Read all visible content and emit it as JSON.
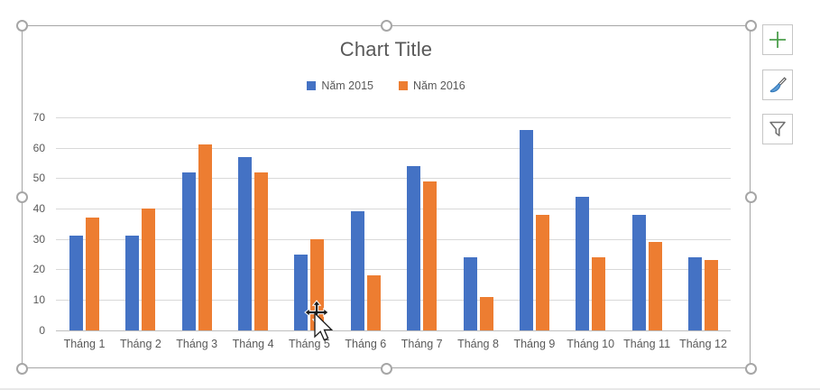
{
  "chart_data": {
    "type": "bar",
    "title": "Chart Title",
    "categories": [
      "Tháng 1",
      "Tháng 2",
      "Tháng 3",
      "Tháng 4",
      "Tháng 5",
      "Tháng 6",
      "Tháng 7",
      "Tháng 8",
      "Tháng 9",
      "Tháng 10",
      "Tháng 11",
      "Tháng 12"
    ],
    "series": [
      {
        "name": "Năm 2015",
        "color": "#4472C4",
        "values": [
          31,
          31,
          52,
          57,
          25,
          39,
          54,
          24,
          66,
          44,
          38,
          24
        ]
      },
      {
        "name": "Năm 2016",
        "color": "#ED7D31",
        "values": [
          37,
          40,
          61,
          52,
          30,
          18,
          49,
          11,
          38,
          24,
          29,
          23
        ]
      }
    ],
    "xlabel": "",
    "ylabel": "",
    "ylim": [
      0,
      70
    ],
    "yticks": [
      0,
      10,
      20,
      30,
      40,
      50,
      60,
      70
    ],
    "grid": true,
    "legend_position": "top"
  },
  "side_buttons": [
    {
      "name": "chart-elements-button",
      "icon": "plus-icon"
    },
    {
      "name": "chart-styles-button",
      "icon": "paintbrush-icon"
    },
    {
      "name": "chart-filters-button",
      "icon": "funnel-icon"
    }
  ],
  "cursor": {
    "icon": "move-arrow-cursor-icon"
  },
  "colors": {
    "series_2015": "#4472C4",
    "series_2016": "#ED7D31",
    "text": "#595959",
    "gridline": "#D9D9D9",
    "axis_line": "#BFBFBF",
    "selection_handle": "#A6A6A6",
    "plus_icon_green": "#4C9F4C",
    "brush_tip_blue": "#5B9BD5"
  }
}
